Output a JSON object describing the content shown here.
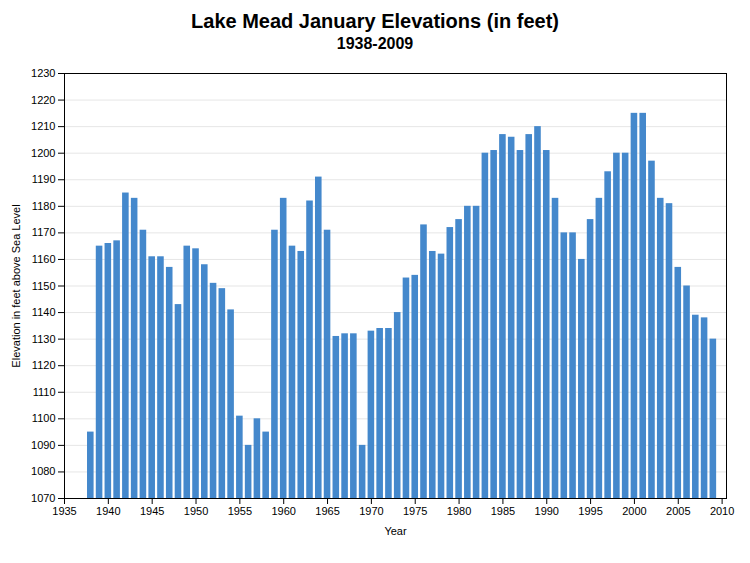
{
  "chart_data": {
    "type": "bar",
    "title": "Lake Mead January Elevations (in feet)",
    "subtitle": "1938-2009",
    "xlabel": "Year",
    "ylabel": "Elevation in feet above Sea Level",
    "color": "#4488cc",
    "x": [
      1938,
      1939,
      1940,
      1941,
      1942,
      1943,
      1944,
      1945,
      1946,
      1947,
      1948,
      1949,
      1950,
      1951,
      1952,
      1953,
      1954,
      1955,
      1956,
      1957,
      1958,
      1959,
      1960,
      1961,
      1962,
      1963,
      1964,
      1965,
      1966,
      1967,
      1968,
      1969,
      1970,
      1971,
      1972,
      1973,
      1974,
      1975,
      1976,
      1977,
      1978,
      1979,
      1980,
      1981,
      1982,
      1983,
      1984,
      1985,
      1986,
      1987,
      1988,
      1989,
      1990,
      1991,
      1992,
      1993,
      1994,
      1995,
      1996,
      1997,
      1998,
      1999,
      2000,
      2001,
      2002,
      2003,
      2004,
      2005,
      2006,
      2007,
      2008,
      2009
    ],
    "values": [
      1095,
      1165,
      1166,
      1167,
      1185,
      1183,
      1171,
      1161,
      1161,
      1157,
      1143,
      1165,
      1164,
      1158,
      1151,
      1149,
      1141,
      1101,
      1090,
      1100,
      1095,
      1171,
      1183,
      1165,
      1163,
      1182,
      1191,
      1171,
      1131,
      1132,
      1132,
      1090,
      1133,
      1134,
      1134,
      1140,
      1153,
      1154,
      1173,
      1163,
      1162,
      1172,
      1175,
      1180,
      1180,
      1200,
      1201,
      1207,
      1206,
      1201,
      1207,
      1210,
      1201,
      1183,
      1170,
      1170,
      1160,
      1175,
      1183,
      1193,
      1200,
      1200,
      1215,
      1215,
      1197,
      1183,
      1181,
      1157,
      1150,
      1139,
      1138,
      1130
    ],
    "xlim": [
      1935,
      2010.5
    ],
    "xticks": [
      1935,
      1940,
      1945,
      1950,
      1955,
      1960,
      1965,
      1970,
      1975,
      1980,
      1985,
      1990,
      1995,
      2000,
      2005,
      2010
    ],
    "ylim": [
      1070,
      1230
    ],
    "yticks": [
      1070,
      1080,
      1090,
      1100,
      1110,
      1120,
      1130,
      1140,
      1150,
      1160,
      1170,
      1180,
      1190,
      1200,
      1210,
      1220,
      1230
    ],
    "grid": true
  }
}
